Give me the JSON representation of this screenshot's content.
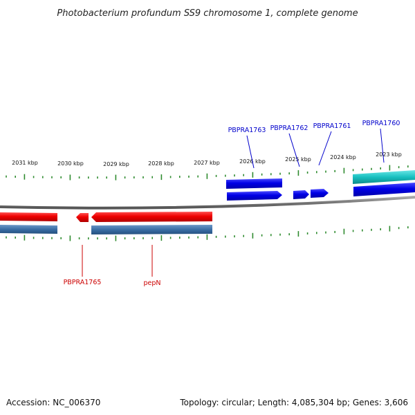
{
  "title": "Photobacterium profundum SS9 chromosome 1, complete genome",
  "footer": {
    "accession": "Accession: NC_006370",
    "summary": "Topology: circular; Length: 4,085,304 bp; Genes: 3,606"
  },
  "colors": {
    "forward_cds": "#0000e6",
    "forward_gene": "#1a1acc",
    "reverse_cds": "#ee0000",
    "reverse_gene": "#3a6ea5",
    "teal_feature": "#18c0c0",
    "backbone": "#777777",
    "tick": "#2e8b2e",
    "forward_label": "#0000cc",
    "reverse_label": "#cc0000"
  },
  "scale": {
    "labels": [
      "2031 kbp",
      "2030 kbp",
      "2029 kbp",
      "2028 kbp",
      "2027 kbp",
      "2026 kbp",
      "2025 kbp",
      "2024 kbp",
      "2023 kbp"
    ]
  },
  "genes": {
    "forward": [
      "PBPRA1763",
      "PBPRA1762",
      "PBPRA1761",
      "PBPRA1760"
    ],
    "reverse": [
      "PBPRA1765",
      "pepN"
    ]
  }
}
